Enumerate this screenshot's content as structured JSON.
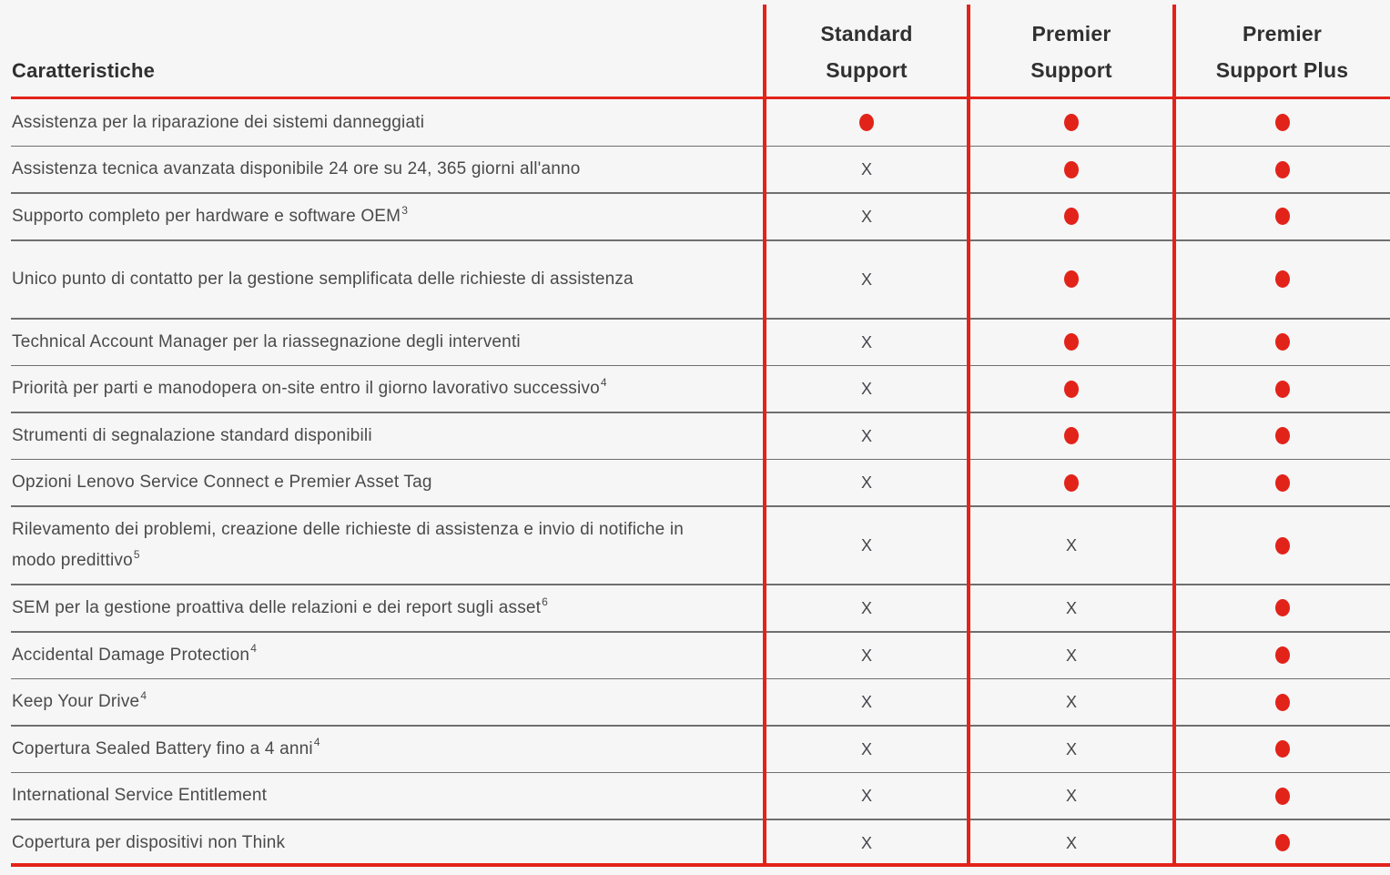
{
  "colors": {
    "accent_red": "#e2231a",
    "row_line": "#6f6f6f",
    "background": "#f6f6f6",
    "body_text": "#4a4a4a",
    "heading_text": "#303030"
  },
  "table": {
    "feature_header": "Caratteristiche",
    "x_symbol": "X",
    "columns": [
      {
        "line1": "Standard",
        "line2": "Support"
      },
      {
        "line1": "Premier",
        "line2": "Support"
      },
      {
        "line1": "Premier",
        "line2": "Support Plus"
      }
    ],
    "rows": [
      {
        "label": "Assistenza per la riparazione dei sistemi danneggiati",
        "sup": "",
        "tall": false,
        "values": [
          "dot",
          "dot",
          "dot"
        ]
      },
      {
        "label": "Assistenza tecnica avanzata disponibile 24 ore su 24, 365 giorni all'anno",
        "sup": "",
        "tall": false,
        "values": [
          "x",
          "dot",
          "dot"
        ]
      },
      {
        "label": "Supporto completo per hardware e software OEM",
        "sup": "3",
        "tall": false,
        "values": [
          "x",
          "dot",
          "dot"
        ]
      },
      {
        "label": "Unico punto di contatto per la gestione semplificata delle richieste di assistenza",
        "sup": "",
        "tall": true,
        "values": [
          "x",
          "dot",
          "dot"
        ]
      },
      {
        "label": "Technical Account Manager per la riassegnazione degli interventi",
        "sup": "",
        "tall": false,
        "values": [
          "x",
          "dot",
          "dot"
        ]
      },
      {
        "label": "Priorità per parti e manodopera on-site entro il giorno lavorativo successivo",
        "sup": "4",
        "tall": false,
        "values": [
          "x",
          "dot",
          "dot"
        ]
      },
      {
        "label": "Strumenti di segnalazione standard disponibili",
        "sup": "",
        "tall": false,
        "values": [
          "x",
          "dot",
          "dot"
        ]
      },
      {
        "label": "Opzioni Lenovo Service Connect e Premier Asset Tag",
        "sup": "",
        "tall": false,
        "values": [
          "x",
          "dot",
          "dot"
        ]
      },
      {
        "label": "Rilevamento dei problemi, creazione delle richieste di assistenza e invio di notifiche in modo predittivo",
        "sup": "5",
        "tall": true,
        "values": [
          "x",
          "x",
          "dot"
        ]
      },
      {
        "label": "SEM per la gestione proattiva delle relazioni e dei report sugli asset",
        "sup": "6",
        "tall": false,
        "values": [
          "x",
          "x",
          "dot"
        ]
      },
      {
        "label": "Accidental Damage Protection",
        "sup": "4",
        "tall": false,
        "values": [
          "x",
          "x",
          "dot"
        ]
      },
      {
        "label": "Keep Your Drive",
        "sup": "4",
        "tall": false,
        "values": [
          "x",
          "x",
          "dot"
        ]
      },
      {
        "label": "Copertura Sealed Battery fino a 4 anni",
        "sup": "4",
        "tall": false,
        "values": [
          "x",
          "x",
          "dot"
        ]
      },
      {
        "label": "International Service Entitlement",
        "sup": "",
        "tall": false,
        "values": [
          "x",
          "x",
          "dot"
        ]
      },
      {
        "label": "Copertura per dispositivi non Think",
        "sup": "",
        "tall": false,
        "values": [
          "x",
          "x",
          "dot"
        ]
      }
    ]
  },
  "chart_data": {
    "type": "table",
    "title": "Caratteristiche",
    "columns": [
      "Standard Support",
      "Premier Support",
      "Premier Support Plus"
    ],
    "legend": {
      "dot": "included",
      "x": "not included"
    }
  }
}
